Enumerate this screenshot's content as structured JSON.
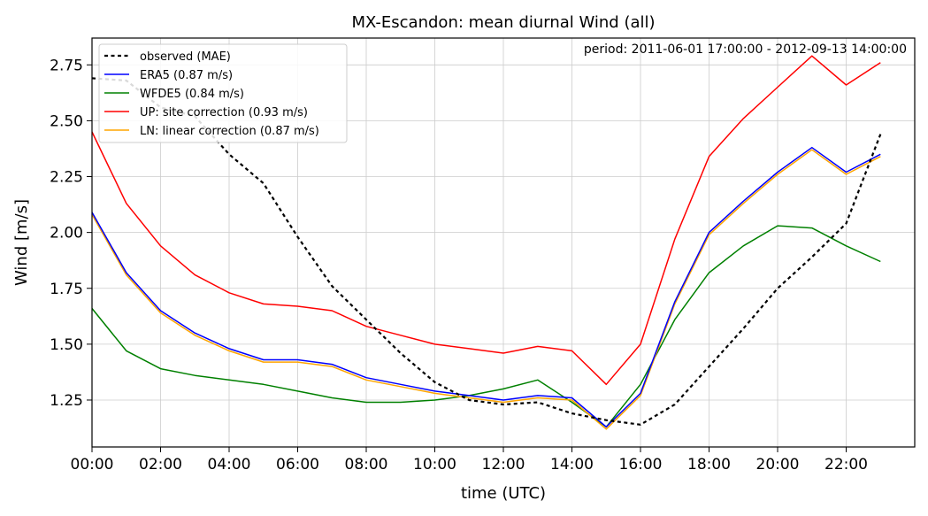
{
  "chart_data": {
    "type": "line",
    "title": "MX-Escandon: mean diurnal Wind (all)",
    "annotation": "period: 2011-06-01 17:00:00 - 2012-09-13 14:00:00",
    "xlabel": "time (UTC)",
    "ylabel": "Wind [m/s]",
    "x": [
      "00:00",
      "01:00",
      "02:00",
      "03:00",
      "04:00",
      "05:00",
      "06:00",
      "07:00",
      "08:00",
      "09:00",
      "10:00",
      "11:00",
      "12:00",
      "13:00",
      "14:00",
      "15:00",
      "16:00",
      "17:00",
      "18:00",
      "19:00",
      "20:00",
      "21:00",
      "22:00",
      "23:00"
    ],
    "x_tick_labels": [
      "00:00",
      "02:00",
      "04:00",
      "06:00",
      "08:00",
      "10:00",
      "12:00",
      "14:00",
      "16:00",
      "18:00",
      "20:00",
      "22:00"
    ],
    "xlim": [
      0,
      24
    ],
    "ylim": [
      1.04,
      2.87
    ],
    "y_ticks": [
      1.25,
      1.5,
      1.75,
      2.0,
      2.25,
      2.5,
      2.75
    ],
    "y_tick_labels": [
      "1.25",
      "1.50",
      "1.75",
      "2.00",
      "2.25",
      "2.50",
      "2.75"
    ],
    "grid": true,
    "legend_position": "top-left",
    "series": [
      {
        "name": "observed (MAE)",
        "color": "#000000",
        "dashed": true,
        "values": [
          2.69,
          2.68,
          2.56,
          2.52,
          2.35,
          2.22,
          1.98,
          1.76,
          1.61,
          1.46,
          1.33,
          1.25,
          1.23,
          1.24,
          1.19,
          1.16,
          1.14,
          1.23,
          1.4,
          1.57,
          1.75,
          1.89,
          2.04,
          2.44
        ]
      },
      {
        "name": "ERA5 (0.87 m/s)",
        "color": "#0000ff",
        "dashed": false,
        "values": [
          2.09,
          1.82,
          1.65,
          1.55,
          1.48,
          1.43,
          1.43,
          1.41,
          1.35,
          1.32,
          1.29,
          1.27,
          1.25,
          1.27,
          1.26,
          1.13,
          1.28,
          1.69,
          2.0,
          2.14,
          2.27,
          2.38,
          2.27,
          2.35
        ]
      },
      {
        "name": "WFDE5 (0.84 m/s)",
        "color": "#008000",
        "dashed": false,
        "values": [
          1.66,
          1.47,
          1.39,
          1.36,
          1.34,
          1.32,
          1.29,
          1.26,
          1.24,
          1.24,
          1.25,
          1.27,
          1.3,
          1.34,
          1.24,
          1.13,
          1.32,
          1.61,
          1.82,
          1.94,
          2.03,
          2.02,
          1.94,
          1.87
        ]
      },
      {
        "name": "UP: site correction (0.93 m/s)",
        "color": "#ff0000",
        "dashed": false,
        "values": [
          2.45,
          2.13,
          1.94,
          1.81,
          1.73,
          1.68,
          1.67,
          1.65,
          1.58,
          1.54,
          1.5,
          1.48,
          1.46,
          1.49,
          1.47,
          1.32,
          1.5,
          1.97,
          2.34,
          2.51,
          2.65,
          2.79,
          2.66,
          2.76
        ]
      },
      {
        "name": "LN: linear correction (0.87 m/s)",
        "color": "#ffa500",
        "dashed": false,
        "values": [
          2.08,
          1.81,
          1.64,
          1.54,
          1.47,
          1.42,
          1.42,
          1.4,
          1.34,
          1.31,
          1.28,
          1.26,
          1.24,
          1.26,
          1.25,
          1.12,
          1.27,
          1.68,
          1.99,
          2.13,
          2.26,
          2.37,
          2.26,
          2.34
        ]
      }
    ]
  }
}
